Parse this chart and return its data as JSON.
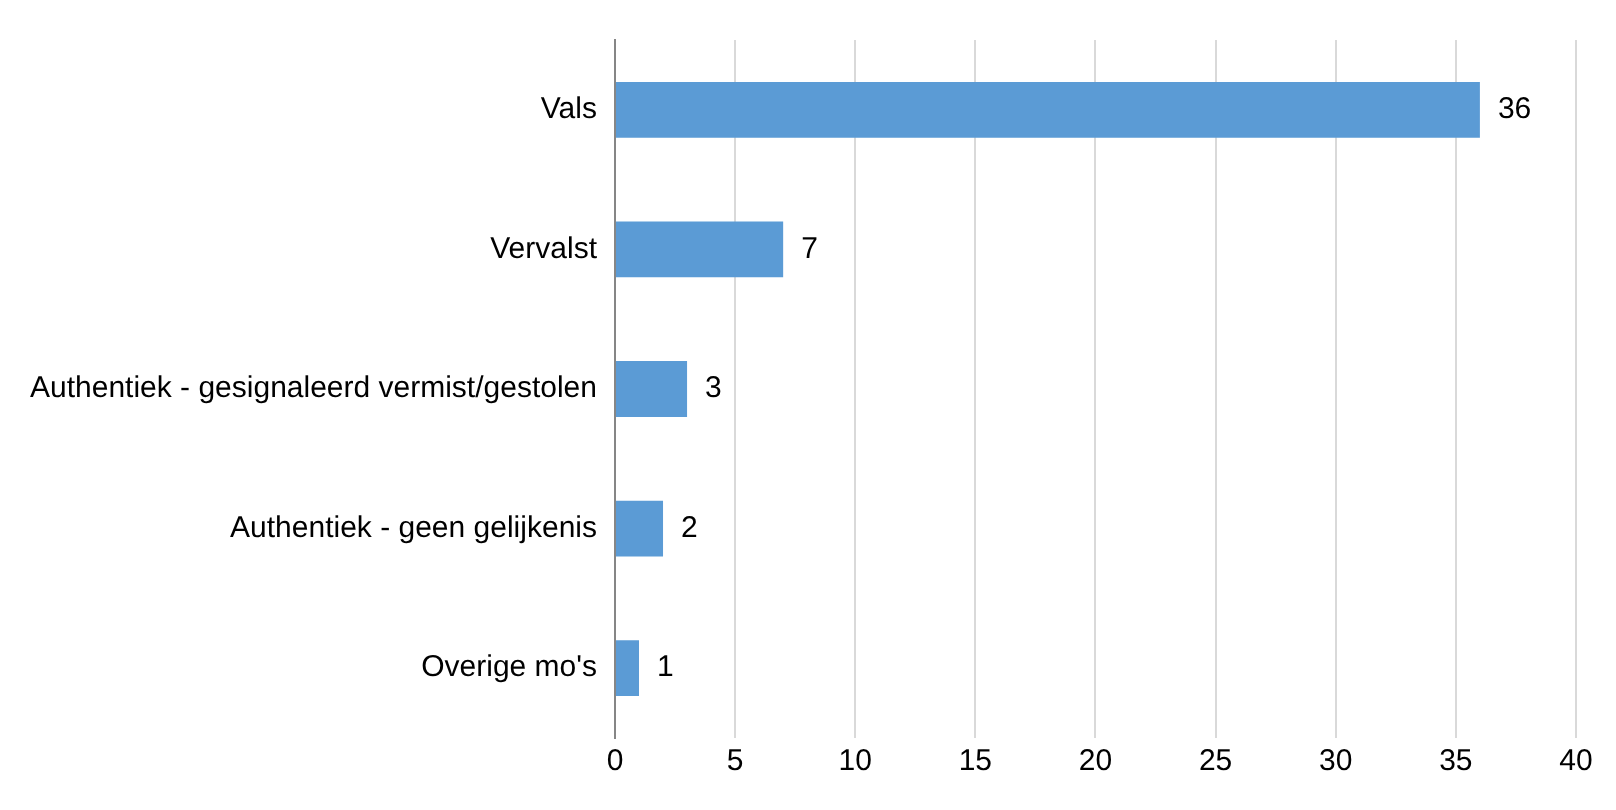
{
  "chart_data": {
    "type": "bar",
    "orientation": "horizontal",
    "categories": [
      "Vals",
      "Vervalst",
      "Authentiek - gesignaleerd vermist/gestolen",
      "Authentiek - geen gelijkenis",
      "Overige mo's"
    ],
    "values": [
      36,
      7,
      3,
      2,
      1
    ],
    "color": "#5b9bd5",
    "xlim": [
      0,
      40
    ],
    "xticks": [
      0,
      5,
      10,
      15,
      20,
      25,
      30,
      35,
      40
    ],
    "grid": "x",
    "data_labels": true,
    "legend": false
  }
}
